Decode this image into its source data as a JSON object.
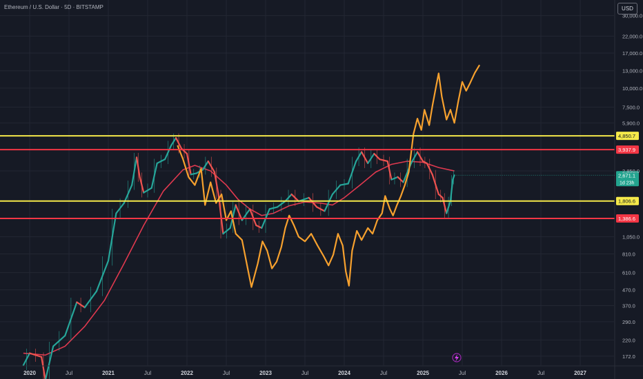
{
  "header": {
    "title": "Ethereum / U.S. Dollar · 5D · BITSTAMP",
    "currency": "USD"
  },
  "colors": {
    "background": "#161a25",
    "grid": "#232733",
    "up_candle": "#26a69a",
    "down_candle": "#ef5350",
    "moving_average": "#e0394f",
    "overlay": "#f7a12e",
    "yellow_level": "#f5e94a",
    "red_level": "#f23645",
    "price_label": "#23a48f"
  },
  "chart_data": {
    "type": "line",
    "scale": "log",
    "ylim": [
      150,
      38000
    ],
    "x_ticks": [
      {
        "label": "2020",
        "x": 2020.0,
        "year": true
      },
      {
        "label": "Jul",
        "x": 2020.5
      },
      {
        "label": "2021",
        "x": 2021.0,
        "year": true
      },
      {
        "label": "Jul",
        "x": 2021.5
      },
      {
        "label": "2022",
        "x": 2022.0,
        "year": true
      },
      {
        "label": "Jul",
        "x": 2022.5
      },
      {
        "label": "2023",
        "x": 2023.0,
        "year": true
      },
      {
        "label": "Jul",
        "x": 2023.5
      },
      {
        "label": "2024",
        "x": 2024.0,
        "year": true
      },
      {
        "label": "Jul",
        "x": 2024.5
      },
      {
        "label": "2025",
        "x": 2025.0,
        "year": true
      },
      {
        "label": "Jul",
        "x": 2025.5
      },
      {
        "label": "2026",
        "x": 2026.0,
        "year": true
      },
      {
        "label": "Jul",
        "x": 2026.5
      },
      {
        "label": "2027",
        "x": 2027.0,
        "year": true
      }
    ],
    "y_ticks": [
      {
        "label": "30,000.0",
        "value": 30000
      },
      {
        "label": "22,000.0",
        "value": 22000
      },
      {
        "label": "17,000.0",
        "value": 17000
      },
      {
        "label": "13,000.0",
        "value": 13000
      },
      {
        "label": "10,000.0",
        "value": 10000
      },
      {
        "label": "7,500.0",
        "value": 7500
      },
      {
        "label": "5,900.0",
        "value": 5900
      },
      {
        "label": "2,850.0",
        "value": 2850
      },
      {
        "label": "1,050.0",
        "value": 1050
      },
      {
        "label": "810.0",
        "value": 810
      },
      {
        "label": "610.0",
        "value": 610
      },
      {
        "label": "470.0",
        "value": 470
      },
      {
        "label": "370.0",
        "value": 370
      },
      {
        "label": "290.0",
        "value": 290
      },
      {
        "label": "220.0",
        "value": 220
      },
      {
        "label": "172.0",
        "value": 172
      }
    ],
    "levels": [
      {
        "value": 4850.7,
        "label": "4,850.7",
        "color": "#f5e94a",
        "text_color": "#131722"
      },
      {
        "value": 3937.9,
        "label": "3,937.9",
        "color": "#f23645",
        "text_color": "#ffffff"
      },
      {
        "value": 1806.6,
        "label": "1,806.6",
        "color": "#f5e94a",
        "text_color": "#131722"
      },
      {
        "value": 1386.6,
        "label": "1,386.6",
        "color": "#f23645",
        "text_color": "#ffffff"
      }
    ],
    "last_price": {
      "value": 2671.1,
      "label": "2,671.1",
      "countdown": "1d 23h"
    },
    "candles": [
      [
        2019.92,
        150
      ],
      [
        2020.0,
        180
      ],
      [
        2020.15,
        170
      ],
      [
        2020.2,
        120
      ],
      [
        2020.3,
        200
      ],
      [
        2020.45,
        235
      ],
      [
        2020.6,
        390
      ],
      [
        2020.7,
        360
      ],
      [
        2020.85,
        460
      ],
      [
        2021.0,
        730
      ],
      [
        2021.1,
        1500
      ],
      [
        2021.2,
        1750
      ],
      [
        2021.3,
        2300
      ],
      [
        2021.36,
        3500
      ],
      [
        2021.4,
        2600
      ],
      [
        2021.45,
        2050
      ],
      [
        2021.55,
        2200
      ],
      [
        2021.62,
        3200
      ],
      [
        2021.72,
        3400
      ],
      [
        2021.8,
        4200
      ],
      [
        2021.86,
        4700
      ],
      [
        2021.93,
        4000
      ],
      [
        2022.0,
        3700
      ],
      [
        2022.05,
        2700
      ],
      [
        2022.12,
        2750
      ],
      [
        2022.2,
        2900
      ],
      [
        2022.27,
        3300
      ],
      [
        2022.35,
        2800
      ],
      [
        2022.4,
        2000
      ],
      [
        2022.46,
        1100
      ],
      [
        2022.55,
        1200
      ],
      [
        2022.62,
        1700
      ],
      [
        2022.7,
        1350
      ],
      [
        2022.8,
        1600
      ],
      [
        2022.88,
        1250
      ],
      [
        2022.95,
        1200
      ],
      [
        2023.05,
        1600
      ],
      [
        2023.15,
        1650
      ],
      [
        2023.25,
        1800
      ],
      [
        2023.33,
        2000
      ],
      [
        2023.42,
        1800
      ],
      [
        2023.55,
        1900
      ],
      [
        2023.65,
        1650
      ],
      [
        2023.75,
        1550
      ],
      [
        2023.85,
        2000
      ],
      [
        2023.95,
        2300
      ],
      [
        2024.05,
        2350
      ],
      [
        2024.15,
        3300
      ],
      [
        2024.22,
        3800
      ],
      [
        2024.3,
        3200
      ],
      [
        2024.38,
        3700
      ],
      [
        2024.45,
        3400
      ],
      [
        2024.55,
        3300
      ],
      [
        2024.6,
        2500
      ],
      [
        2024.68,
        2600
      ],
      [
        2024.75,
        2400
      ],
      [
        2024.85,
        3200
      ],
      [
        2024.93,
        3800
      ],
      [
        2025.0,
        3300
      ],
      [
        2025.05,
        3200
      ],
      [
        2025.12,
        2700
      ],
      [
        2025.2,
        2000
      ],
      [
        2025.25,
        1900
      ],
      [
        2025.3,
        1500
      ],
      [
        2025.35,
        1800
      ],
      [
        2025.38,
        2500
      ],
      [
        2025.4,
        2671
      ]
    ],
    "moving_average": [
      [
        2019.92,
        180
      ],
      [
        2020.2,
        175
      ],
      [
        2020.45,
        200
      ],
      [
        2020.7,
        270
      ],
      [
        2020.95,
        400
      ],
      [
        2021.2,
        700
      ],
      [
        2021.45,
        1250
      ],
      [
        2021.7,
        2100
      ],
      [
        2021.95,
        2900
      ],
      [
        2022.1,
        3100
      ],
      [
        2022.3,
        2850
      ],
      [
        2022.5,
        2300
      ],
      [
        2022.65,
        1850
      ],
      [
        2022.8,
        1600
      ],
      [
        2022.95,
        1450
      ],
      [
        2023.1,
        1500
      ],
      [
        2023.3,
        1680
      ],
      [
        2023.5,
        1780
      ],
      [
        2023.7,
        1750
      ],
      [
        2023.85,
        1700
      ],
      [
        2024.0,
        1900
      ],
      [
        2024.2,
        2300
      ],
      [
        2024.4,
        2800
      ],
      [
        2024.6,
        3150
      ],
      [
        2024.8,
        3300
      ],
      [
        2025.0,
        3250
      ],
      [
        2025.2,
        3000
      ],
      [
        2025.4,
        2850
      ]
    ],
    "overlay_path": [
      [
        2021.88,
        4200
      ],
      [
        2021.95,
        3400
      ],
      [
        2022.02,
        2600
      ],
      [
        2022.1,
        2300
      ],
      [
        2022.18,
        2950
      ],
      [
        2022.23,
        1700
      ],
      [
        2022.3,
        2400
      ],
      [
        2022.37,
        1750
      ],
      [
        2022.44,
        2000
      ],
      [
        2022.5,
        1350
      ],
      [
        2022.56,
        1550
      ],
      [
        2022.62,
        1100
      ],
      [
        2022.7,
        1000
      ],
      [
        2022.78,
        620
      ],
      [
        2022.82,
        490
      ],
      [
        2022.9,
        700
      ],
      [
        2022.96,
        980
      ],
      [
        2023.02,
        850
      ],
      [
        2023.08,
        650
      ],
      [
        2023.14,
        720
      ],
      [
        2023.2,
        900
      ],
      [
        2023.25,
        1200
      ],
      [
        2023.3,
        1450
      ],
      [
        2023.36,
        1250
      ],
      [
        2023.42,
        1050
      ],
      [
        2023.5,
        980
      ],
      [
        2023.58,
        1100
      ],
      [
        2023.66,
        920
      ],
      [
        2023.74,
        780
      ],
      [
        2023.8,
        680
      ],
      [
        2023.86,
        800
      ],
      [
        2023.92,
        1100
      ],
      [
        2023.98,
        920
      ],
      [
        2024.02,
        620
      ],
      [
        2024.06,
        500
      ],
      [
        2024.1,
        850
      ],
      [
        2024.16,
        1150
      ],
      [
        2024.22,
        1000
      ],
      [
        2024.3,
        1200
      ],
      [
        2024.36,
        1100
      ],
      [
        2024.42,
        1350
      ],
      [
        2024.48,
        1500
      ],
      [
        2024.52,
        1950
      ],
      [
        2024.58,
        1600
      ],
      [
        2024.62,
        1450
      ],
      [
        2024.67,
        1700
      ],
      [
        2024.72,
        1950
      ],
      [
        2024.77,
        2300
      ],
      [
        2024.82,
        2800
      ],
      [
        2024.88,
        5000
      ],
      [
        2024.93,
        6300
      ],
      [
        2024.98,
        5300
      ],
      [
        2025.02,
        7200
      ],
      [
        2025.08,
        5700
      ],
      [
        2025.12,
        7600
      ],
      [
        2025.16,
        9800
      ],
      [
        2025.2,
        12500
      ],
      [
        2025.24,
        8800
      ],
      [
        2025.3,
        6200
      ],
      [
        2025.35,
        7200
      ],
      [
        2025.4,
        5900
      ],
      [
        2025.45,
        8200
      ],
      [
        2025.5,
        11000
      ],
      [
        2025.55,
        9600
      ],
      [
        2025.6,
        10800
      ],
      [
        2025.66,
        12600
      ],
      [
        2025.72,
        14200
      ]
    ]
  }
}
